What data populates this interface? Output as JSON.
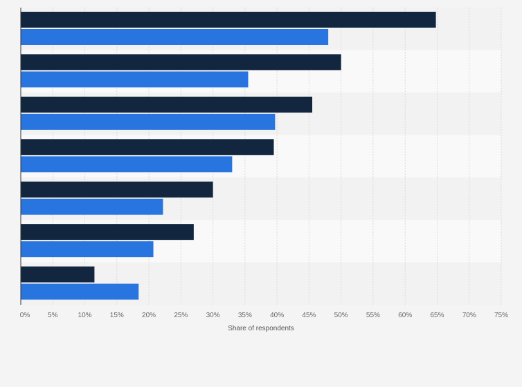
{
  "chart_data": {
    "type": "bar",
    "orientation": "horizontal",
    "categories": [
      "",
      "",
      "",
      "",
      "",
      "",
      ""
    ],
    "series": [
      {
        "values": [
          64.8,
          50.0,
          45.5,
          39.5,
          30.0,
          27.0,
          11.5
        ],
        "color": "#12263f"
      },
      {
        "values": [
          48.0,
          35.5,
          39.7,
          33.0,
          22.2,
          20.7,
          18.4
        ],
        "color": "#2875df"
      }
    ],
    "xlabel": "Share of respondents",
    "ylabel": "",
    "xlim": [
      0,
      75
    ],
    "x_ticks": [
      "0%",
      "5%",
      "10%",
      "15%",
      "20%",
      "25%",
      "30%",
      "35%",
      "40%",
      "45%",
      "50%",
      "55%",
      "60%",
      "65%",
      "70%",
      "75%"
    ],
    "tick_step": 5,
    "grid": true,
    "legend": "none"
  },
  "colors": {
    "background": "#f4f4f4",
    "band_light": "#f9f9f9",
    "band_dark": "#f2f2f2",
    "gridline": "#d9d9d9",
    "axis": "#333333"
  }
}
